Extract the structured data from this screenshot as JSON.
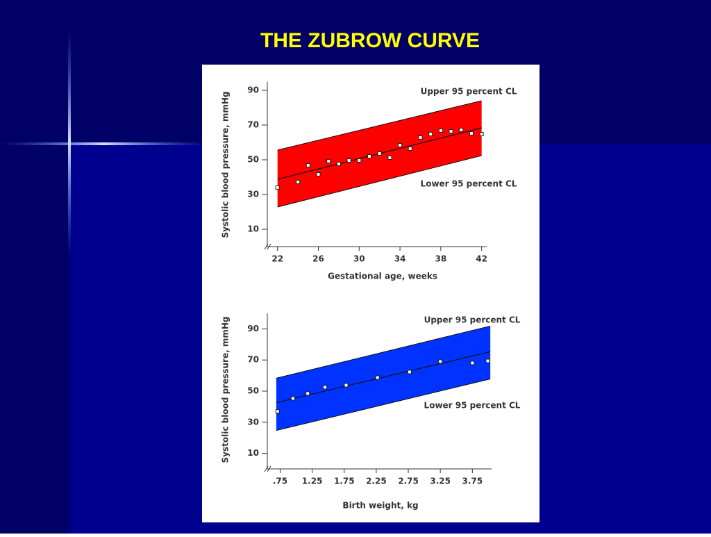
{
  "title": "THE ZUBROW CURVE",
  "chart_data": [
    {
      "type": "scatter",
      "x_label": "Gestational age, weeks",
      "y_label": "Systolic blood pressure, mmHg",
      "annotations": [
        "Upper 95 percent CL",
        "Lower 95 percent CL"
      ],
      "xlim": [
        21,
        42.5
      ],
      "ylim": [
        0,
        95
      ],
      "xticks": [
        22,
        26,
        30,
        34,
        38,
        42
      ],
      "yticks": [
        10,
        30,
        50,
        70,
        90
      ],
      "band": {
        "color": "#ff0000",
        "x": [
          22,
          42
        ],
        "upper": [
          55.6,
          84
        ],
        "lower": [
          22.8,
          52.4
        ]
      },
      "fit": {
        "x": [
          22,
          42
        ],
        "values": [
          38.8,
          68.4
        ]
      },
      "points": {
        "x": [
          22,
          24,
          25,
          26,
          27,
          28,
          29,
          30,
          31,
          32,
          33,
          34,
          35,
          36,
          37,
          38,
          39,
          40,
          41,
          42
        ],
        "values": [
          34,
          37.2,
          46.8,
          41.6,
          49.2,
          47.6,
          49.6,
          49.6,
          52,
          53.6,
          51.2,
          58.4,
          56.4,
          62.8,
          64.8,
          66.8,
          66.4,
          67.2,
          65.2,
          64.8
        ]
      }
    },
    {
      "type": "scatter",
      "x_label": "Birth weight, kg",
      "y_label": "Systolic blood pressure, mmHg",
      "annotations": [
        "Upper 95 percent CL",
        "Lower 95 percent CL"
      ],
      "xlim": [
        0.55,
        4.05
      ],
      "ylim": [
        0,
        100
      ],
      "xticks": [
        {
          "value": 0.75,
          "label": ".75"
        },
        1.25,
        1.75,
        2.25,
        2.75,
        3.25,
        3.75
      ],
      "yticks": [
        10,
        30,
        50,
        70,
        90
      ],
      "band": {
        "color": "#0033ff",
        "x": [
          0.69,
          4.03
        ],
        "upper": [
          58.3,
          91.8
        ],
        "lower": [
          24.7,
          57.8
        ]
      },
      "fit": {
        "x": [
          0.69,
          4.03
        ],
        "values": [
          42.6,
          75.3
        ]
      },
      "points": {
        "x": [
          0.71,
          0.95,
          1.18,
          1.45,
          1.78,
          2.27,
          2.77,
          3.25,
          3.75,
          3.99
        ],
        "values": [
          37,
          45.3,
          48.5,
          52.5,
          53.8,
          58.7,
          62.3,
          69,
          68.1,
          69.4
        ]
      }
    }
  ]
}
